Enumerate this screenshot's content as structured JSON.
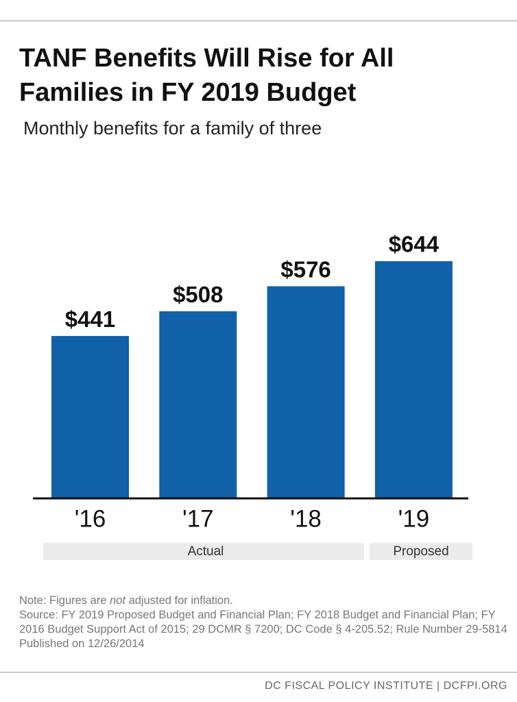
{
  "chart_data": {
    "type": "bar",
    "title": "TANF Benefits Will Rise for All Families in FY 2019 Budget",
    "subtitle": "Monthly benefits for a family of three",
    "categories": [
      "'16",
      "'17",
      "'18",
      "'19"
    ],
    "values": [
      441,
      508,
      576,
      644
    ],
    "value_labels": [
      "$441",
      "$508",
      "$576",
      "$644"
    ],
    "color": "#1161a8",
    "groups": [
      "Actual",
      "Proposed"
    ]
  },
  "note": {
    "prefix": "Note: Figures are ",
    "emphasis": "not",
    "suffix": " adjusted for inflation."
  },
  "source": "Source: FY 2019 Proposed Budget and Financial Plan; FY 2018 Budget and Financial Plan; FY 2016 Budget Support Act of 2015; 29 DCMR § 7200; DC Code § 4-205.52; Rule Number 29-5814 Published on 12/26/2014",
  "footer": "DC FISCAL POLICY INSTITUTE | DCFPI.ORG"
}
